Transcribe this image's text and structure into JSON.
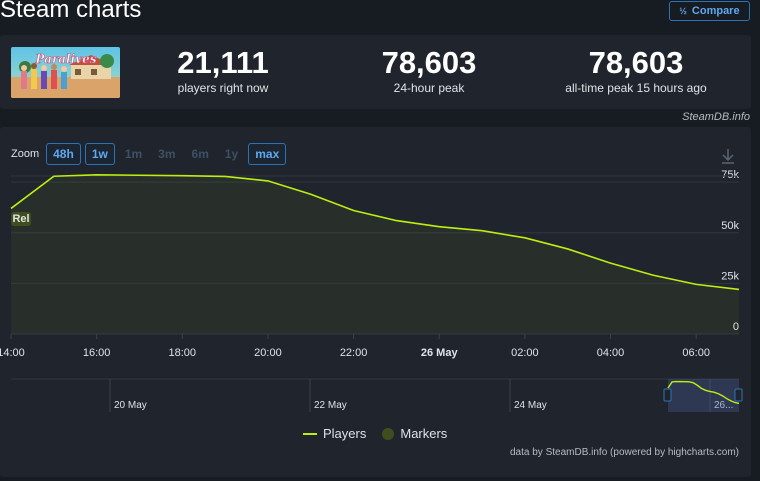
{
  "page": {
    "title": "Steam charts",
    "compare_label": "Compare",
    "credit": "SteamDB.info",
    "footer": "data by SteamDB.info (powered by highcharts.com)"
  },
  "stats": [
    {
      "value": "21,111",
      "label": "players right now"
    },
    {
      "value": "78,603",
      "label": "24-hour peak"
    },
    {
      "value": "78,603",
      "label": "all-time peak 15 hours ago"
    }
  ],
  "game": {
    "logo_text": "Paralives"
  },
  "zoom": {
    "label": "Zoom",
    "options": [
      {
        "label": "48h",
        "active": true
      },
      {
        "label": "1w",
        "active": true
      },
      {
        "label": "1m",
        "active": false
      },
      {
        "label": "3m",
        "active": false
      },
      {
        "label": "6m",
        "active": false
      },
      {
        "label": "1y",
        "active": false
      },
      {
        "label": "max",
        "active": true
      }
    ]
  },
  "chart_data": {
    "type": "line",
    "series": [
      {
        "name": "Players",
        "color": "#beee11",
        "x": [
          "2025-05-25 14:00",
          "2025-05-25 15:00",
          "2025-05-25 16:00",
          "2025-05-25 17:00",
          "2025-05-25 18:00",
          "2025-05-25 19:00",
          "2025-05-25 20:00",
          "2025-05-25 21:00",
          "2025-05-25 22:00",
          "2025-05-25 23:00",
          "2025-05-26 00:00",
          "2025-05-26 01:00",
          "2025-05-26 02:00",
          "2025-05-26 03:00",
          "2025-05-26 04:00",
          "2025-05-26 05:00",
          "2025-05-26 06:00",
          "2025-05-26 07:00"
        ],
        "values": [
          62000,
          77900,
          78603,
          78400,
          78200,
          77800,
          75600,
          69000,
          61000,
          56000,
          53000,
          51000,
          47500,
          42000,
          35000,
          29000,
          24500,
          22000
        ]
      }
    ],
    "xlabel": "",
    "ylabel": "",
    "ylim": [
      0,
      80000
    ],
    "y_ticks": [
      "0",
      "25k",
      "50k",
      "75k"
    ],
    "x_ticks": [
      "14:00",
      "16:00",
      "18:00",
      "20:00",
      "22:00",
      "26 May",
      "02:00",
      "04:00",
      "06:00"
    ],
    "flag": {
      "label": "Rel",
      "color": "#3e4e1c"
    },
    "navigator": {
      "labels": [
        "20 May",
        "22 May",
        "24 May",
        "26..."
      ]
    },
    "legend": [
      {
        "name": "Players",
        "color": "#beee11"
      },
      {
        "name": "Markers",
        "color": "#3e4e1c"
      }
    ],
    "grid": true
  }
}
